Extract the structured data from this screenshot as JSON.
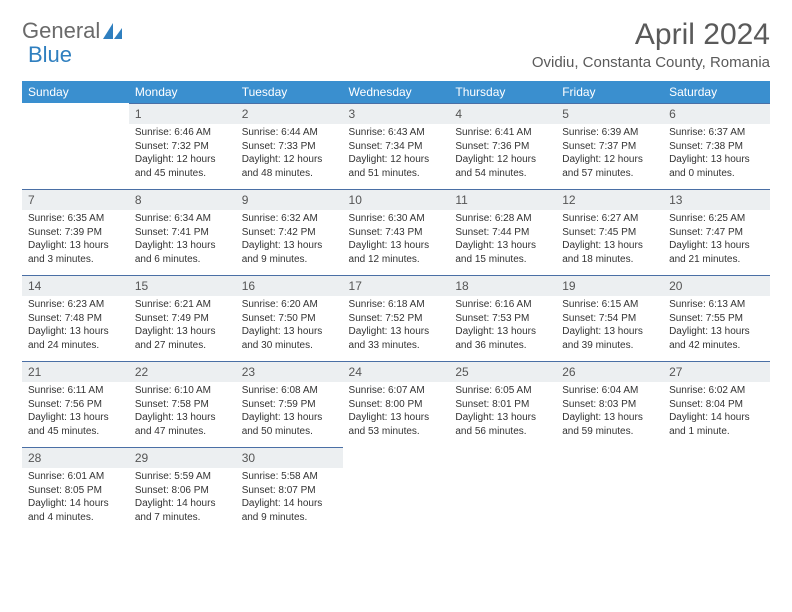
{
  "logo": {
    "text1": "General",
    "text2": "Blue"
  },
  "title": "April 2024",
  "location": "Ovidiu, Constanta County, Romania",
  "day_headers": [
    "Sunday",
    "Monday",
    "Tuesday",
    "Wednesday",
    "Thursday",
    "Friday",
    "Saturday"
  ],
  "colors": {
    "header_bg": "#3a8fcf",
    "header_text": "#ffffff",
    "daynum_bg": "#eceff1",
    "daynum_border": "#4a6fa5",
    "body_text": "#333333",
    "title_text": "#5a5a5a"
  },
  "weeks": [
    [
      {
        "num": "",
        "sunrise": "",
        "sunset": "",
        "daylight": ""
      },
      {
        "num": "1",
        "sunrise": "Sunrise: 6:46 AM",
        "sunset": "Sunset: 7:32 PM",
        "daylight": "Daylight: 12 hours and 45 minutes."
      },
      {
        "num": "2",
        "sunrise": "Sunrise: 6:44 AM",
        "sunset": "Sunset: 7:33 PM",
        "daylight": "Daylight: 12 hours and 48 minutes."
      },
      {
        "num": "3",
        "sunrise": "Sunrise: 6:43 AM",
        "sunset": "Sunset: 7:34 PM",
        "daylight": "Daylight: 12 hours and 51 minutes."
      },
      {
        "num": "4",
        "sunrise": "Sunrise: 6:41 AM",
        "sunset": "Sunset: 7:36 PM",
        "daylight": "Daylight: 12 hours and 54 minutes."
      },
      {
        "num": "5",
        "sunrise": "Sunrise: 6:39 AM",
        "sunset": "Sunset: 7:37 PM",
        "daylight": "Daylight: 12 hours and 57 minutes."
      },
      {
        "num": "6",
        "sunrise": "Sunrise: 6:37 AM",
        "sunset": "Sunset: 7:38 PM",
        "daylight": "Daylight: 13 hours and 0 minutes."
      }
    ],
    [
      {
        "num": "7",
        "sunrise": "Sunrise: 6:35 AM",
        "sunset": "Sunset: 7:39 PM",
        "daylight": "Daylight: 13 hours and 3 minutes."
      },
      {
        "num": "8",
        "sunrise": "Sunrise: 6:34 AM",
        "sunset": "Sunset: 7:41 PM",
        "daylight": "Daylight: 13 hours and 6 minutes."
      },
      {
        "num": "9",
        "sunrise": "Sunrise: 6:32 AM",
        "sunset": "Sunset: 7:42 PM",
        "daylight": "Daylight: 13 hours and 9 minutes."
      },
      {
        "num": "10",
        "sunrise": "Sunrise: 6:30 AM",
        "sunset": "Sunset: 7:43 PM",
        "daylight": "Daylight: 13 hours and 12 minutes."
      },
      {
        "num": "11",
        "sunrise": "Sunrise: 6:28 AM",
        "sunset": "Sunset: 7:44 PM",
        "daylight": "Daylight: 13 hours and 15 minutes."
      },
      {
        "num": "12",
        "sunrise": "Sunrise: 6:27 AM",
        "sunset": "Sunset: 7:45 PM",
        "daylight": "Daylight: 13 hours and 18 minutes."
      },
      {
        "num": "13",
        "sunrise": "Sunrise: 6:25 AM",
        "sunset": "Sunset: 7:47 PM",
        "daylight": "Daylight: 13 hours and 21 minutes."
      }
    ],
    [
      {
        "num": "14",
        "sunrise": "Sunrise: 6:23 AM",
        "sunset": "Sunset: 7:48 PM",
        "daylight": "Daylight: 13 hours and 24 minutes."
      },
      {
        "num": "15",
        "sunrise": "Sunrise: 6:21 AM",
        "sunset": "Sunset: 7:49 PM",
        "daylight": "Daylight: 13 hours and 27 minutes."
      },
      {
        "num": "16",
        "sunrise": "Sunrise: 6:20 AM",
        "sunset": "Sunset: 7:50 PM",
        "daylight": "Daylight: 13 hours and 30 minutes."
      },
      {
        "num": "17",
        "sunrise": "Sunrise: 6:18 AM",
        "sunset": "Sunset: 7:52 PM",
        "daylight": "Daylight: 13 hours and 33 minutes."
      },
      {
        "num": "18",
        "sunrise": "Sunrise: 6:16 AM",
        "sunset": "Sunset: 7:53 PM",
        "daylight": "Daylight: 13 hours and 36 minutes."
      },
      {
        "num": "19",
        "sunrise": "Sunrise: 6:15 AM",
        "sunset": "Sunset: 7:54 PM",
        "daylight": "Daylight: 13 hours and 39 minutes."
      },
      {
        "num": "20",
        "sunrise": "Sunrise: 6:13 AM",
        "sunset": "Sunset: 7:55 PM",
        "daylight": "Daylight: 13 hours and 42 minutes."
      }
    ],
    [
      {
        "num": "21",
        "sunrise": "Sunrise: 6:11 AM",
        "sunset": "Sunset: 7:56 PM",
        "daylight": "Daylight: 13 hours and 45 minutes."
      },
      {
        "num": "22",
        "sunrise": "Sunrise: 6:10 AM",
        "sunset": "Sunset: 7:58 PM",
        "daylight": "Daylight: 13 hours and 47 minutes."
      },
      {
        "num": "23",
        "sunrise": "Sunrise: 6:08 AM",
        "sunset": "Sunset: 7:59 PM",
        "daylight": "Daylight: 13 hours and 50 minutes."
      },
      {
        "num": "24",
        "sunrise": "Sunrise: 6:07 AM",
        "sunset": "Sunset: 8:00 PM",
        "daylight": "Daylight: 13 hours and 53 minutes."
      },
      {
        "num": "25",
        "sunrise": "Sunrise: 6:05 AM",
        "sunset": "Sunset: 8:01 PM",
        "daylight": "Daylight: 13 hours and 56 minutes."
      },
      {
        "num": "26",
        "sunrise": "Sunrise: 6:04 AM",
        "sunset": "Sunset: 8:03 PM",
        "daylight": "Daylight: 13 hours and 59 minutes."
      },
      {
        "num": "27",
        "sunrise": "Sunrise: 6:02 AM",
        "sunset": "Sunset: 8:04 PM",
        "daylight": "Daylight: 14 hours and 1 minute."
      }
    ],
    [
      {
        "num": "28",
        "sunrise": "Sunrise: 6:01 AM",
        "sunset": "Sunset: 8:05 PM",
        "daylight": "Daylight: 14 hours and 4 minutes."
      },
      {
        "num": "29",
        "sunrise": "Sunrise: 5:59 AM",
        "sunset": "Sunset: 8:06 PM",
        "daylight": "Daylight: 14 hours and 7 minutes."
      },
      {
        "num": "30",
        "sunrise": "Sunrise: 5:58 AM",
        "sunset": "Sunset: 8:07 PM",
        "daylight": "Daylight: 14 hours and 9 minutes."
      },
      {
        "num": "",
        "sunrise": "",
        "sunset": "",
        "daylight": ""
      },
      {
        "num": "",
        "sunrise": "",
        "sunset": "",
        "daylight": ""
      },
      {
        "num": "",
        "sunrise": "",
        "sunset": "",
        "daylight": ""
      },
      {
        "num": "",
        "sunrise": "",
        "sunset": "",
        "daylight": ""
      }
    ]
  ]
}
